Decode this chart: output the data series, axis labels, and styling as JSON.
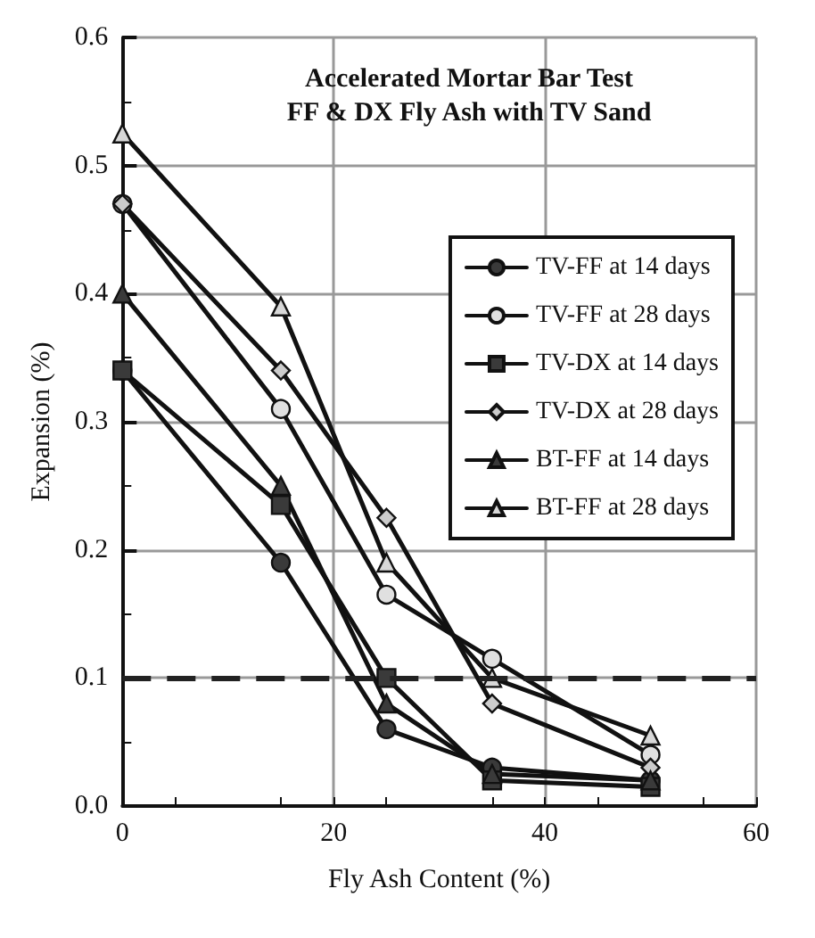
{
  "chart_data": {
    "type": "line",
    "title": "Accelerated Mortar Bar Test",
    "subtitle": "FF & DX Fly Ash with TV Sand",
    "xlabel": "Fly Ash Content (%)",
    "ylabel": "Expansion (%)",
    "x": [
      0,
      15,
      25,
      35,
      50
    ],
    "series": [
      {
        "name": "TV-FF at 14 days",
        "color": "#3a3a3a",
        "marker": "circle",
        "values": [
          0.34,
          0.19,
          0.06,
          0.03,
          0.02
        ]
      },
      {
        "name": "TV-FF at 28 days",
        "color": "#e0e0e0",
        "marker": "circle",
        "values": [
          0.47,
          0.31,
          0.165,
          0.115,
          0.04
        ]
      },
      {
        "name": "TV-DX at 14 days",
        "color": "#3a3a3a",
        "marker": "square",
        "values": [
          0.34,
          0.235,
          0.1,
          0.02,
          0.015
        ]
      },
      {
        "name": "TV-DX at 28 days",
        "color": "#cccccc",
        "marker": "diamond",
        "values": [
          0.47,
          0.34,
          0.225,
          0.08,
          0.03
        ]
      },
      {
        "name": "BT-FF at 14 days",
        "color": "#3a3a3a",
        "marker": "triangle",
        "values": [
          0.4,
          0.25,
          0.08,
          0.025,
          0.02
        ]
      },
      {
        "name": "BT-FF at 28 days",
        "color": "#d8d8d8",
        "marker": "triangle",
        "values": [
          0.525,
          0.39,
          0.19,
          0.1,
          0.055
        ]
      }
    ],
    "xlim": [
      0,
      60
    ],
    "xticks": [
      0,
      20,
      40,
      60
    ],
    "ylim": [
      0,
      0.6
    ],
    "yticks": [
      {
        "value": 0,
        "label": "0.0"
      },
      0.1,
      0.2,
      0.3,
      0.4,
      0.5,
      0.6
    ],
    "ref_lines": [
      {
        "axis": "y",
        "value": 0.1,
        "line_style": "dashed",
        "color": "#222222"
      }
    ],
    "grid": true,
    "legend": "top right",
    "line_style": "solid"
  }
}
